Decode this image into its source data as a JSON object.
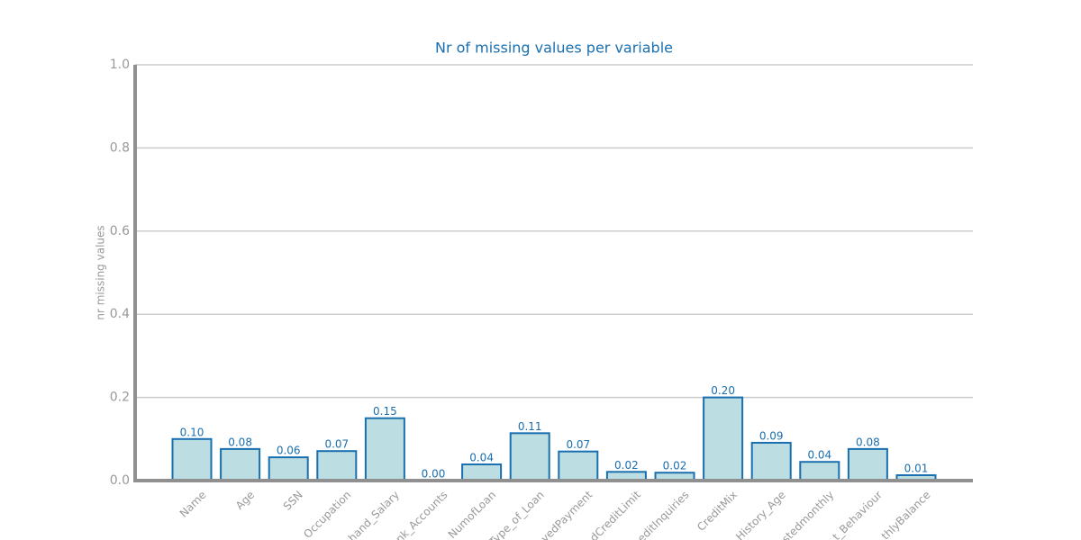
{
  "chart_data": {
    "type": "bar",
    "title": "Nr of missing values per variable",
    "ylabel": "nr missing values",
    "categories": [
      "Name",
      "Age",
      "SSN",
      "Occupation",
      "hand_Salary",
      "nk_Accounts",
      "NumofLoan",
      "Type_of_Loan",
      "yedPayment",
      "dCreditLimit",
      "editInquiries",
      "CreditMix",
      "History_Age",
      "stedmonthly",
      "t_Behaviour",
      "thlyBalance"
    ],
    "values": [
      0.1,
      0.076,
      0.056,
      0.071,
      0.15,
      0,
      0.039,
      0.114,
      0.07,
      0.021,
      0.019,
      0.2,
      0.091,
      0.045,
      0.076,
      0.013
    ],
    "value_labels": [
      "0.10",
      "0.08",
      "0.06",
      "0.07",
      "0.15",
      "0.00",
      "0.04",
      "0.11",
      "0.07",
      "0.02",
      "0.02",
      "0.20",
      "0.09",
      "0.04",
      "0.08",
      "0.01"
    ],
    "color": "#bcdde1",
    "edge_color": "#1a6faf",
    "ylim": [
      0,
      1
    ],
    "yticks": [
      {
        "value": 0,
        "label": "0.0"
      },
      0.2,
      0.4,
      0.6,
      0.8,
      {
        "value": 1,
        "label": "1.0"
      }
    ],
    "grid": true
  }
}
